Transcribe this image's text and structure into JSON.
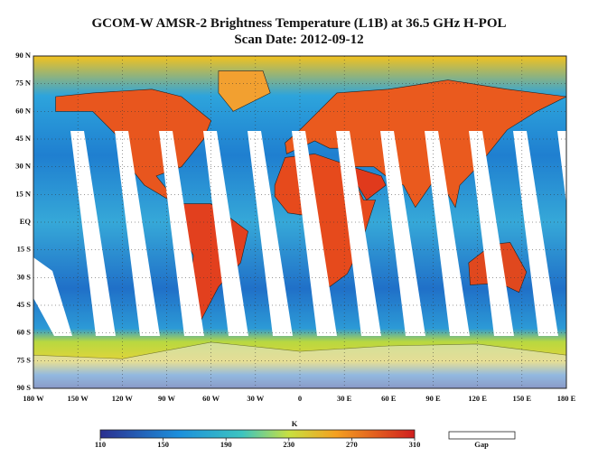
{
  "title": "GCOM-W AMSR-2 Brightness Temperature (L1B) at 36.5 GHz H-POL",
  "subtitle": "Scan Date: 2012-09-12",
  "lat_labels": [
    "90 N",
    "75 N",
    "60 N",
    "45 N",
    "30 N",
    "15 N",
    "EQ",
    "15 S",
    "30 S",
    "45 S",
    "60 S",
    "75 S",
    "90 S"
  ],
  "lon_labels": [
    "180 W",
    "150 W",
    "120 W",
    "90 W",
    "60 W",
    "30 W",
    "0",
    "30 E",
    "60 E",
    "90 E",
    "120 E",
    "150 E",
    "180 E"
  ],
  "colorbar": {
    "label": "K",
    "ticks": [
      110,
      150,
      190,
      230,
      270,
      310
    ]
  },
  "gap_label": "Gap"
}
